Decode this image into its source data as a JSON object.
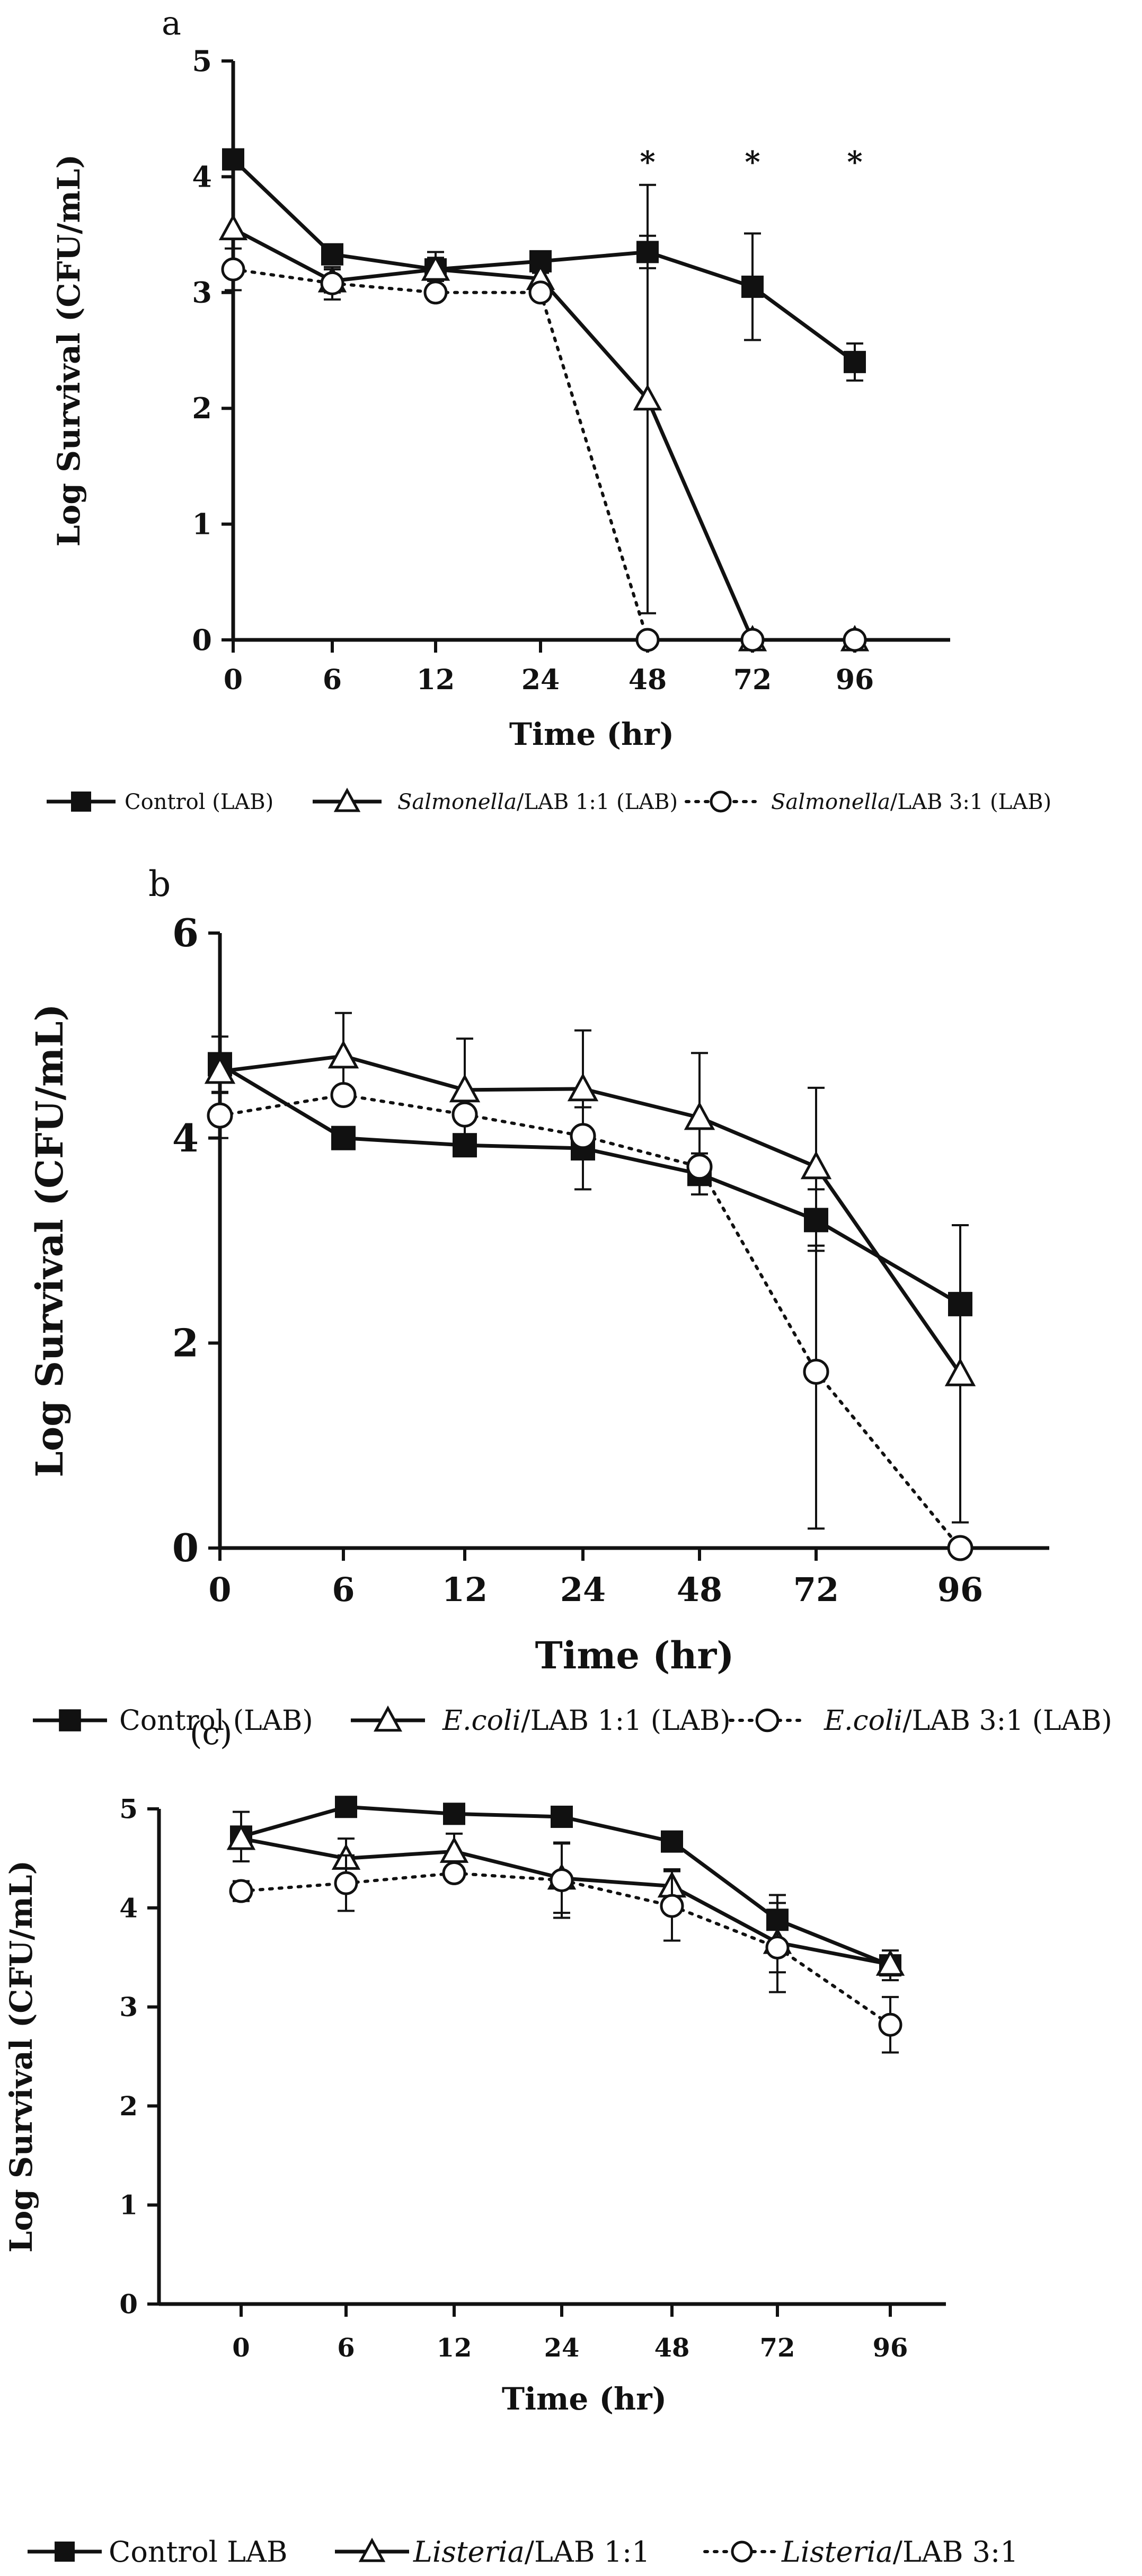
{
  "chart_data": [
    {
      "panel_label": "a",
      "type": "line",
      "xlabel": "Time (hr)",
      "ylabel": "Log Survival (CFU/mL)",
      "categories": [
        "0",
        "6",
        "12",
        "24",
        "48",
        "72",
        "96"
      ],
      "ylim": [
        0,
        5
      ],
      "yticks": [
        "0",
        "1",
        "2",
        "3",
        "4",
        "5"
      ],
      "significance_marks": [
        {
          "category": "48",
          "text": "*"
        },
        {
          "category": "72",
          "text": "*"
        },
        {
          "category": "96",
          "text": "*"
        }
      ],
      "series": [
        {
          "name": "Control (LAB)",
          "name_italic": "",
          "name_rest": "Control (LAB)",
          "marker": "square",
          "line": "solid",
          "values": [
            4.15,
            3.33,
            3.2,
            3.27,
            3.35,
            3.05,
            2.4
          ],
          "errors": [
            0.0,
            0.06,
            0.1,
            0.05,
            0.14,
            0.46,
            0.16
          ]
        },
        {
          "name": "Salmonella/LAB 1:1 (LAB)",
          "name_italic": "Salmonella",
          "name_rest": "/LAB 1:1 (LAB)",
          "marker": "triangle",
          "line": "solid",
          "values": [
            3.55,
            3.1,
            3.2,
            3.12,
            2.08,
            0,
            0
          ],
          "errors": [
            0.0,
            0.1,
            0.15,
            0.05,
            1.85,
            0,
            0
          ]
        },
        {
          "name": "Salmonella/LAB 3:1 (LAB)",
          "name_italic": "Salmonella",
          "name_rest": "/LAB 3:1 (LAB)",
          "marker": "circle",
          "line": "dotted",
          "values": [
            3.2,
            3.08,
            3.0,
            3.0,
            0,
            0,
            0
          ],
          "errors": [
            0.18,
            0.14,
            0.0,
            0.0,
            0,
            0,
            0
          ]
        }
      ]
    },
    {
      "panel_label": "b",
      "type": "line",
      "xlabel": "Time (hr)",
      "ylabel": "Log Survival (CFU/mL)",
      "categories": [
        "0",
        "6",
        "12",
        "24",
        "48",
        "72",
        "96"
      ],
      "ylim": [
        0,
        6
      ],
      "yticks": [
        "0",
        "2",
        "4",
        "6"
      ],
      "significance_marks": [],
      "series": [
        {
          "name": "Control (LAB)",
          "name_italic": "",
          "name_rest": "Control (LAB)",
          "marker": "square",
          "line": "solid",
          "values": [
            4.72,
            4.0,
            3.93,
            3.9,
            3.65,
            3.2,
            2.38
          ],
          "errors": [
            0.27,
            0.0,
            0.0,
            0.4,
            0.2,
            0.3,
            0.0
          ]
        },
        {
          "name": "E.coli/LAB 1:1 (LAB)",
          "name_italic": "E.coli",
          "name_rest": "/LAB 1:1 (LAB)",
          "marker": "triangle",
          "line": "solid",
          "values": [
            4.65,
            4.8,
            4.47,
            4.48,
            4.2,
            3.72,
            1.7
          ],
          "errors": [
            0.0,
            0.42,
            0.5,
            0.57,
            0.63,
            0.77,
            1.45
          ]
        },
        {
          "name": "E.coli/LAB 3:1 (LAB)",
          "name_italic": "E.coli",
          "name_rest": "/LAB 3:1 (LAB)",
          "marker": "circle",
          "line": "dotted",
          "values": [
            4.22,
            4.42,
            4.23,
            4.02,
            3.72,
            1.72,
            0
          ],
          "errors": [
            0.22,
            0.0,
            0.0,
            0.0,
            0.0,
            1.53,
            0
          ]
        }
      ]
    },
    {
      "panel_label": "(c)",
      "type": "line",
      "xlabel": "Time (hr)",
      "ylabel": "Log Survival (CFU/mL)",
      "categories": [
        "0",
        "6",
        "12",
        "24",
        "48",
        "72",
        "96"
      ],
      "ylim": [
        0,
        5
      ],
      "yticks": [
        "0",
        "1",
        "2",
        "3",
        "4",
        "5"
      ],
      "significance_marks": [],
      "series": [
        {
          "name": "Control LAB",
          "name_italic": "",
          "name_rest": "Control LAB",
          "marker": "square",
          "line": "solid",
          "values": [
            4.72,
            5.02,
            4.95,
            4.92,
            4.67,
            3.88,
            3.42
          ],
          "errors": [
            0.25,
            0.0,
            0.0,
            0.0,
            0.0,
            0.25,
            0.15
          ]
        },
        {
          "name": "Listeria/LAB 1:1",
          "name_italic": "Listeria",
          "name_rest": "/LAB 1:1",
          "marker": "triangle",
          "line": "solid",
          "values": [
            4.7,
            4.5,
            4.57,
            4.3,
            4.22,
            3.65,
            3.43
          ],
          "errors": [
            0.0,
            0.2,
            0.18,
            0.35,
            0.17,
            0.3,
            0.0
          ]
        },
        {
          "name": "Listeria/LAB 3:1",
          "name_italic": "Listeria",
          "name_rest": "/LAB 3:1",
          "marker": "circle",
          "line": "dotted",
          "values": [
            4.17,
            4.25,
            4.35,
            4.28,
            4.02,
            3.6,
            2.82
          ],
          "errors": [
            0.1,
            0.28,
            0.0,
            0.38,
            0.35,
            0.45,
            0.28
          ]
        }
      ]
    }
  ]
}
